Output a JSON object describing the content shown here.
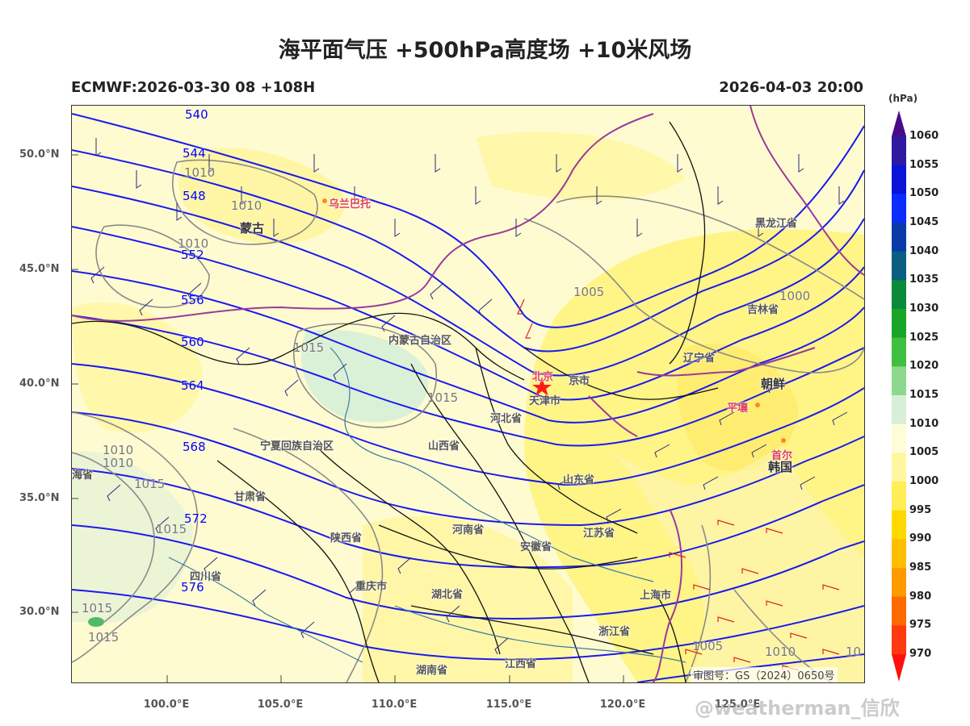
{
  "title": "海平面气压 +500hPa高度场 +10米风场",
  "subtitle_left": "ECMWF:2026-03-30 08 +108H",
  "subtitle_right": "2026-04-03 20:00",
  "colorbar": {
    "unit": "(hPa)",
    "levels": [
      "1060",
      "1055",
      "1050",
      "1045",
      "1040",
      "1035",
      "1030",
      "1025",
      "1020",
      "1015",
      "1010",
      "1005",
      "1000",
      "995",
      "990",
      "985",
      "980",
      "975",
      "970"
    ],
    "colors": [
      "#4b0a8a",
      "#2e1aa0",
      "#0a14d8",
      "#0a2cff",
      "#0a3aa8",
      "#0a5e80",
      "#0a8a3a",
      "#18a52a",
      "#40c040",
      "#8ed88e",
      "#d7efd7",
      "#fffdd8",
      "#fff7a0",
      "#ffee55",
      "#ffd800",
      "#ffbe00",
      "#ff9a00",
      "#ff6a00",
      "#ff3a10",
      "#ff1010"
    ]
  },
  "lat_labels": [
    "50.0°N",
    "45.0°N",
    "40.0°N",
    "35.0°N",
    "30.0°N"
  ],
  "lon_labels": [
    "100.0°E",
    "105.0°E",
    "110.0°E",
    "115.0°E",
    "120.0°E",
    "125.0°E"
  ],
  "height_labels": [
    "540",
    "544",
    "548",
    "552",
    "556",
    "560",
    "564",
    "568",
    "572",
    "576"
  ],
  "pressure_labels": [
    "1010",
    "1010",
    "1010",
    "1015",
    "1015",
    "1005",
    "1000",
    "1010",
    "1010",
    "1015",
    "1015",
    "1015",
    "1015",
    "1005",
    "1010",
    "10"
  ],
  "place_labels": {
    "mongolia": "蒙古",
    "ulaanbaatar": "乌兰巴托",
    "inner_mongolia": "内蒙古自治区",
    "beijing": "北京",
    "tianjin_part": "京市",
    "tianjin": "天津市",
    "hebei": "河北省",
    "shanxi": "山西省",
    "ningxia": "宁夏回族自治区",
    "gansu": "甘肃省",
    "shaanxi": "陕西省",
    "henan": "河南省",
    "shandong": "山东省",
    "anhui": "安徽省",
    "jiangsu": "江苏省",
    "shanghai": "上海市",
    "zhejiang": "浙江省",
    "hubei": "湖北省",
    "hunan": "湖南省",
    "jiangxi": "江西省",
    "chongqing": "重庆市",
    "sichuan": "四川省",
    "qinghai_part": "海省",
    "liaoning": "辽宁省",
    "jilin": "吉林省",
    "heilongjiang": "黑龙江省",
    "north_korea": "朝鲜",
    "pyongyang": "平壤",
    "south_korea": "韩国",
    "seoul": "首尔"
  },
  "map_note": "审图号：GS（2024）0650号",
  "watermark": "@weatherman_信欣"
}
